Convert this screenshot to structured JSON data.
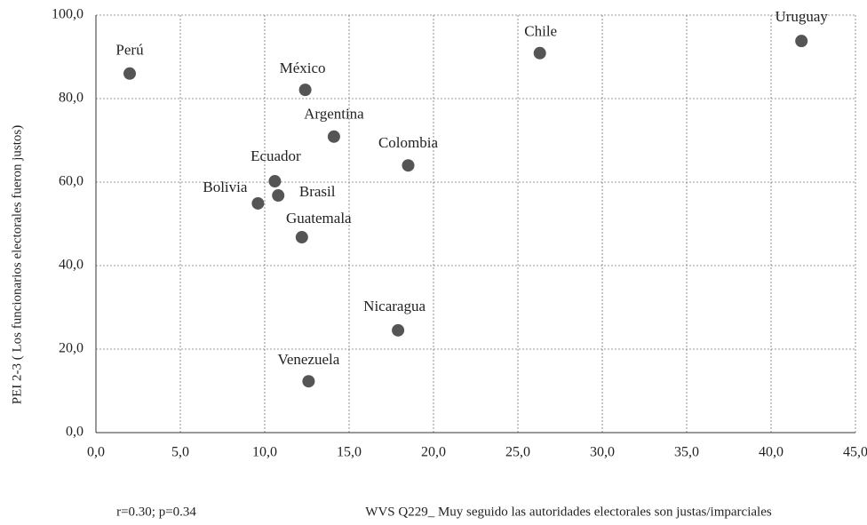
{
  "chart_data": {
    "type": "scatter",
    "labels": [
      "Perú",
      "México",
      "Chile",
      "Uruguay",
      "Argentina",
      "Colombia",
      "Ecuador",
      "Brasil",
      "Bolivia",
      "Guatemala",
      "Nicaragua",
      "Venezuela"
    ],
    "x": [
      2.0,
      12.4,
      26.3,
      41.8,
      14.1,
      18.5,
      10.6,
      10.8,
      9.6,
      12.2,
      17.9,
      12.6
    ],
    "y": [
      86.0,
      82.1,
      90.9,
      93.8,
      70.9,
      64.0,
      60.2,
      56.8,
      54.9,
      46.8,
      24.5,
      12.3
    ],
    "color": "#555555",
    "xlim": [
      0,
      45
    ],
    "ylim": [
      0,
      100
    ],
    "xticks": [
      {
        "value": 0,
        "label": "0,0"
      },
      {
        "value": 5,
        "label": "5,0"
      },
      {
        "value": 10,
        "label": "10,0"
      },
      {
        "value": 15,
        "label": "15,0"
      },
      {
        "value": 20,
        "label": "20,0"
      },
      {
        "value": 25,
        "label": "25,0"
      },
      {
        "value": 30,
        "label": "30,0"
      },
      {
        "value": 35,
        "label": "35,0"
      },
      {
        "value": 40,
        "label": "40,0"
      },
      {
        "value": 45,
        "label": "45,0"
      }
    ],
    "yticks": [
      {
        "value": 0,
        "label": "0,0"
      },
      {
        "value": 20,
        "label": "20,0"
      },
      {
        "value": 40,
        "label": "40,0"
      },
      {
        "value": 60,
        "label": "60,0"
      },
      {
        "value": 80,
        "label": "80,0"
      },
      {
        "value": 100,
        "label": "100,0"
      }
    ],
    "grid": true,
    "xlabel": "WVS Q229_ Muy seguido las autoridades electorales son justas/imparciales",
    "ylabel": "PEI 2-3 ( Los funcionarios electorales fueron justos)",
    "annotation": "r=0.30; p=0.34"
  }
}
